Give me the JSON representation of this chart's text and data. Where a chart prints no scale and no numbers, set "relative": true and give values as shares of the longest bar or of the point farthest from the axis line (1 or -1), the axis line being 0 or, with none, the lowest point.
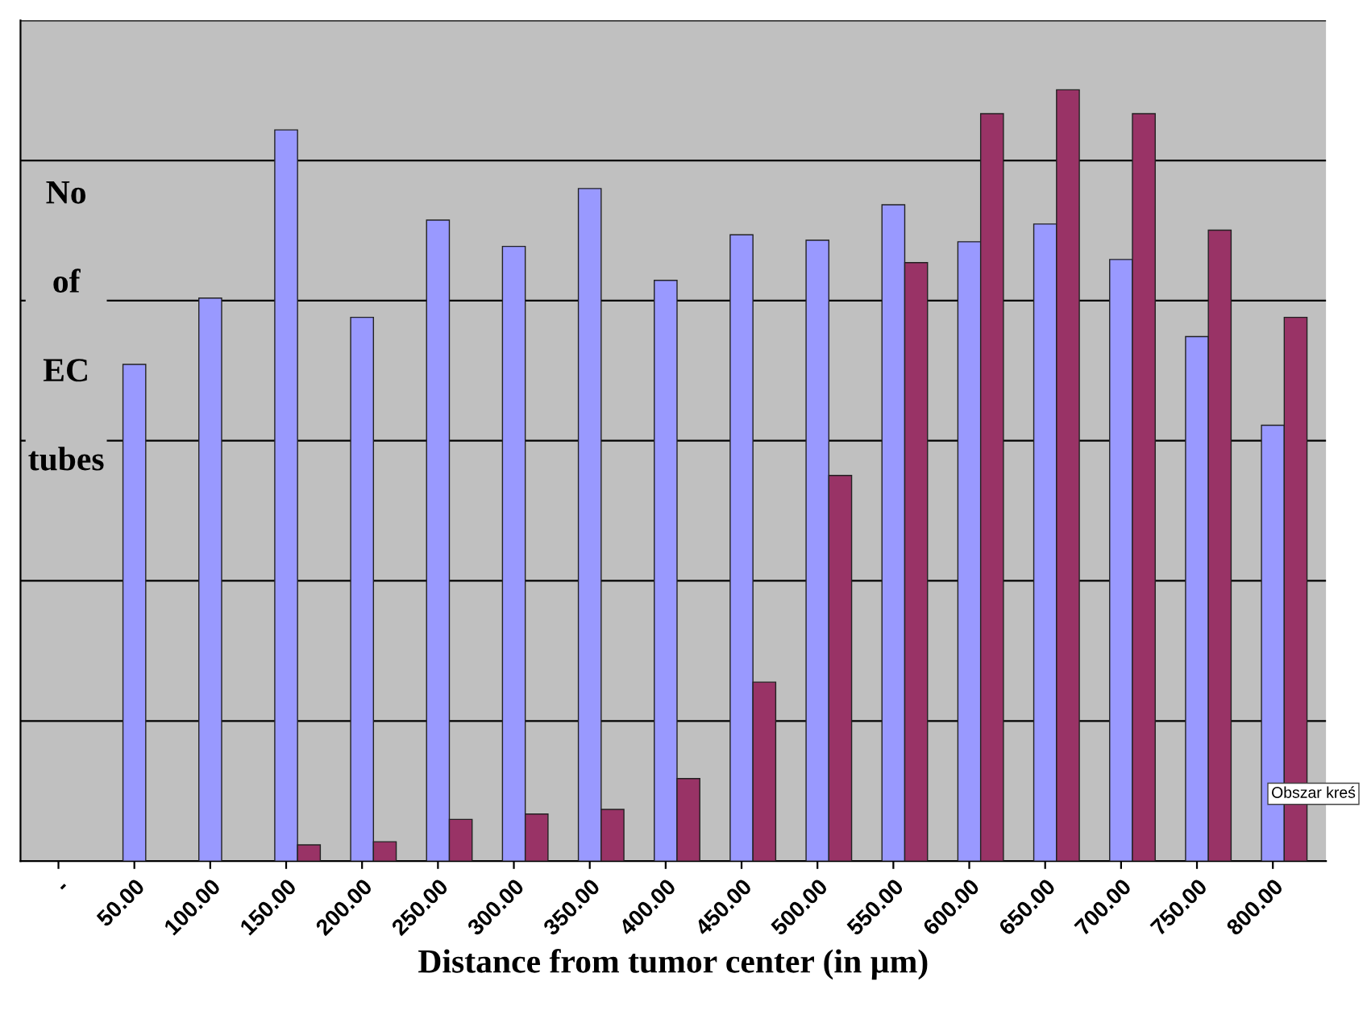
{
  "chart_data": {
    "type": "bar",
    "relative": true,
    "xlabel": "Distance from tumor center (in µm)",
    "ylabel": "No of EC tubes",
    "categories": [
      "-",
      "50.00",
      "100.00",
      "150.00",
      "200.00",
      "250.00",
      "300.00",
      "350.00",
      "400.00",
      "450.00",
      "500.00",
      "550.00",
      "600.00",
      "650.00",
      "700.00",
      "750.00",
      "800.00"
    ],
    "series": [
      {
        "color": "#9999ff",
        "values": [
          null,
          0.644,
          0.73,
          0.948,
          0.705,
          0.831,
          0.797,
          0.872,
          0.753,
          0.812,
          0.805,
          0.851,
          0.803,
          0.826,
          0.78,
          0.68,
          0.565
        ]
      },
      {
        "color": "#993366",
        "values": [
          null,
          null,
          null,
          0.021,
          0.025,
          0.054,
          0.061,
          0.067,
          0.107,
          0.232,
          0.5,
          0.776,
          0.969,
          1,
          0.969,
          0.818,
          0.705
        ]
      }
    ],
    "grid": "y",
    "legend": false,
    "annotations": [
      "Obszar kreś"
    ]
  }
}
